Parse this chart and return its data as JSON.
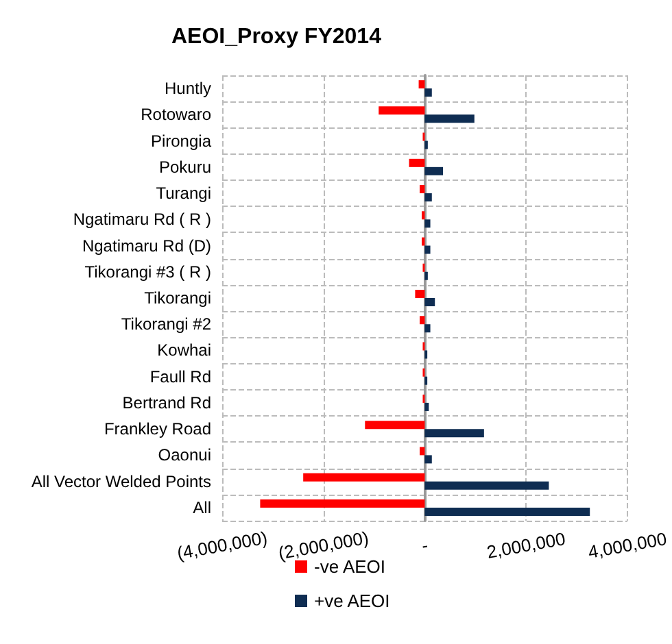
{
  "chart_data": {
    "type": "bar",
    "title": "AEOI_Proxy FY2014",
    "orientation": "horizontal",
    "categories": [
      "Huntly",
      "Rotowaro",
      "Pirongia",
      "Pokuru",
      "Turangi",
      "Ngatimaru Rd ( R )",
      "Ngatimaru Rd (D)",
      "Tikorangi #3 ( R )",
      "Tikorangi",
      "Tikorangi #2",
      "Kowhai",
      "Faull Rd",
      "Bertrand Rd",
      "Frankley Road",
      "Oaonui",
      "All Vector Welded Points",
      "All"
    ],
    "series": [
      {
        "name": "-ve AEOI",
        "color": "#ff0000",
        "values": [
          -120000,
          -910000,
          -40000,
          -310000,
          -100000,
          -60000,
          -60000,
          -40000,
          -190000,
          -100000,
          -40000,
          -40000,
          -40000,
          -1180000,
          -100000,
          -2400000,
          -3250000
        ]
      },
      {
        "name": "+ve AEOI",
        "color": "#0f2d52",
        "values": [
          140000,
          980000,
          60000,
          360000,
          140000,
          110000,
          110000,
          60000,
          200000,
          110000,
          50000,
          50000,
          80000,
          1170000,
          140000,
          2450000,
          3260000
        ]
      }
    ],
    "xlim": [
      -4000000,
      4000000
    ],
    "xticks": [
      {
        "value": -4000000,
        "label": "(4,000,000)"
      },
      {
        "value": -2000000,
        "label": "(2,000,000)"
      },
      {
        "value": 0,
        "label": "-"
      },
      {
        "value": 2000000,
        "label": "2,000,000"
      },
      {
        "value": 4000000,
        "label": "4,000,000"
      }
    ],
    "grid": true,
    "legend": "bottom"
  }
}
